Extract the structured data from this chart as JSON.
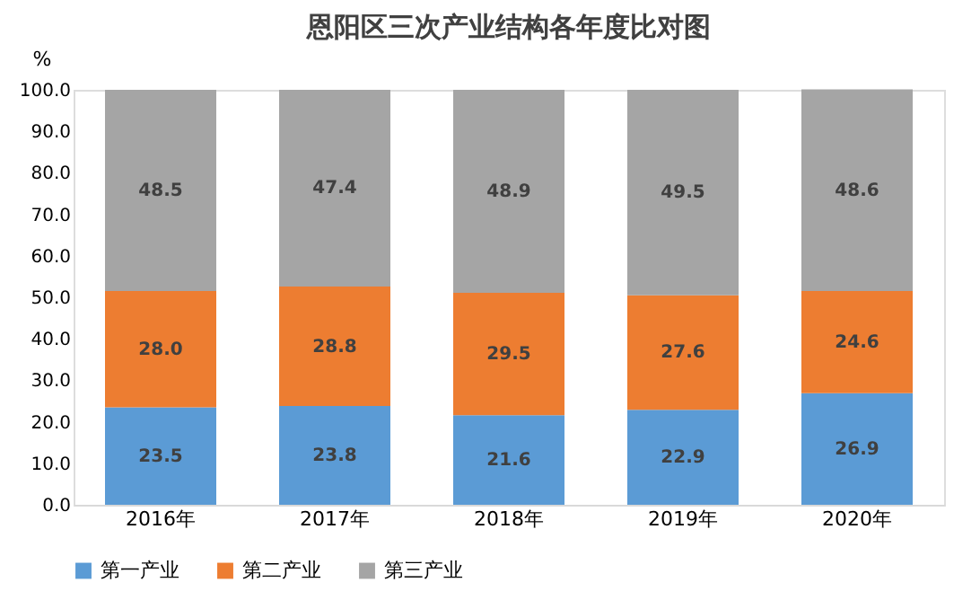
{
  "chart_data": {
    "type": "bar",
    "title": "恩阳区三次产业结构各年度比对图",
    "ylabel": "%",
    "stacked": true,
    "legend": "bottom",
    "grid": false,
    "categories": [
      "2016年",
      "2017年",
      "2018年",
      "2019年",
      "2020年"
    ],
    "series": [
      {
        "name": "第一产业",
        "color": "#5b9bd5",
        "values": [
          23.5,
          23.8,
          21.6,
          22.9,
          26.9
        ],
        "value_labels": [
          "23.5",
          "23.8",
          "21.6",
          "22.9",
          "26.9"
        ]
      },
      {
        "name": "第二产业",
        "color": "#ed7d31",
        "values": [
          28.0,
          28.8,
          29.5,
          27.6,
          24.6
        ],
        "value_labels": [
          "28.0",
          "28.8",
          "29.5",
          "27.6",
          "24.6"
        ]
      },
      {
        "name": "第三产业",
        "color": "#a5a5a5",
        "values": [
          48.5,
          47.4,
          48.9,
          49.5,
          48.6
        ],
        "value_labels": [
          "48.5",
          "47.4",
          "48.9",
          "49.5",
          "48.6"
        ]
      }
    ],
    "ylim": [
      0,
      100
    ],
    "yticks": [
      {
        "value": 0,
        "label": "0.0"
      },
      {
        "value": 10,
        "label": "10.0"
      },
      {
        "value": 20,
        "label": "20.0"
      },
      {
        "value": 30,
        "label": "30.0"
      },
      {
        "value": 40,
        "label": "40.0"
      },
      {
        "value": 50,
        "label": "50.0"
      },
      {
        "value": 60,
        "label": "60.0"
      },
      {
        "value": 70,
        "label": "70.0"
      },
      {
        "value": 80,
        "label": "80.0"
      },
      {
        "value": 90,
        "label": "90.0"
      },
      {
        "value": 100,
        "label": "100.0"
      }
    ]
  }
}
